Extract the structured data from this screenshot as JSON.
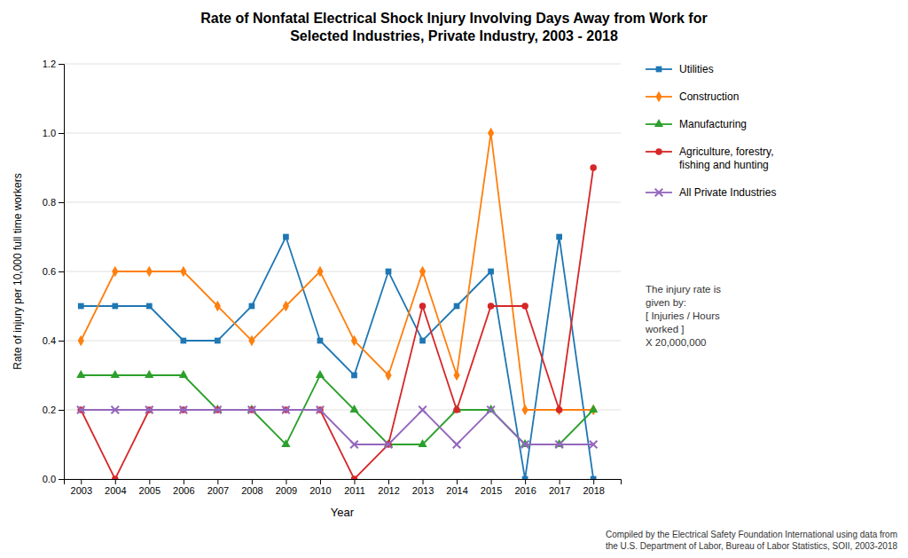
{
  "chart_data": {
    "type": "line",
    "title": "Rate of Nonfatal Electrical Shock Injury Involving Days Away from Work for\nSelected Industries, Private Industry, 2003 - 2018",
    "xlabel": "Year",
    "ylabel": "Rate of injury per 10,000 full time workers",
    "x": [
      2003,
      2004,
      2005,
      2006,
      2007,
      2008,
      2009,
      2010,
      2011,
      2012,
      2013,
      2014,
      2015,
      2016,
      2017,
      2018
    ],
    "xlim": [
      2002.5,
      2018.8
    ],
    "xticks": [
      2003,
      2004,
      2005,
      2006,
      2007,
      2008,
      2009,
      2010,
      2011,
      2012,
      2013,
      2014,
      2015,
      2016,
      2017,
      2018
    ],
    "ylim": [
      0,
      1.2
    ],
    "yticks": [
      {
        "value": 0,
        "label": "0.0"
      },
      0.2,
      0.4,
      0.6,
      0.8,
      {
        "value": 1,
        "label": "1.0"
      },
      1.2
    ],
    "grid": "y",
    "legend": "right",
    "series": [
      {
        "name": "Utilities",
        "marker": "square",
        "values": [
          0.5,
          0.5,
          0.5,
          0.4,
          0.4,
          0.5,
          0.7,
          0.4,
          0.3,
          0.6,
          0.4,
          0.5,
          0.6,
          0.0,
          0.7,
          0.0
        ]
      },
      {
        "name": "Construction",
        "marker": "diamond",
        "values": [
          0.4,
          0.6,
          0.6,
          0.6,
          0.5,
          0.4,
          0.5,
          0.6,
          0.4,
          0.3,
          0.6,
          0.3,
          1.0,
          0.2,
          0.2,
          0.2
        ]
      },
      {
        "name": "Manufacturing",
        "marker": "triangle",
        "values": [
          0.3,
          0.3,
          0.3,
          0.3,
          0.2,
          0.2,
          0.1,
          0.3,
          0.2,
          0.1,
          0.1,
          0.2,
          0.2,
          0.1,
          0.1,
          0.2
        ]
      },
      {
        "name": "Agriculture, forestry,\nfishing and hunting",
        "marker": "circle",
        "values": [
          0.2,
          0.0,
          0.2,
          0.2,
          0.2,
          0.2,
          0.2,
          0.2,
          0.0,
          0.1,
          0.5,
          0.2,
          0.5,
          0.5,
          0.2,
          0.9
        ]
      },
      {
        "name": "All Private Industries",
        "marker": "x",
        "values": [
          0.2,
          0.2,
          0.2,
          0.2,
          0.2,
          0.2,
          0.2,
          0.2,
          0.1,
          0.1,
          0.2,
          0.1,
          0.2,
          0.1,
          0.1,
          0.1
        ]
      }
    ],
    "annotations": [
      "The injury rate is\ngiven by:\n[ Injuries / Hours\nworked ]\nX 20,000,000",
      "Compiled by the Electrical Safety Foundation International using data from\nthe U.S. Department of Labor, Bureau of Labor Statistics, SOII, 2003-2018"
    ]
  }
}
